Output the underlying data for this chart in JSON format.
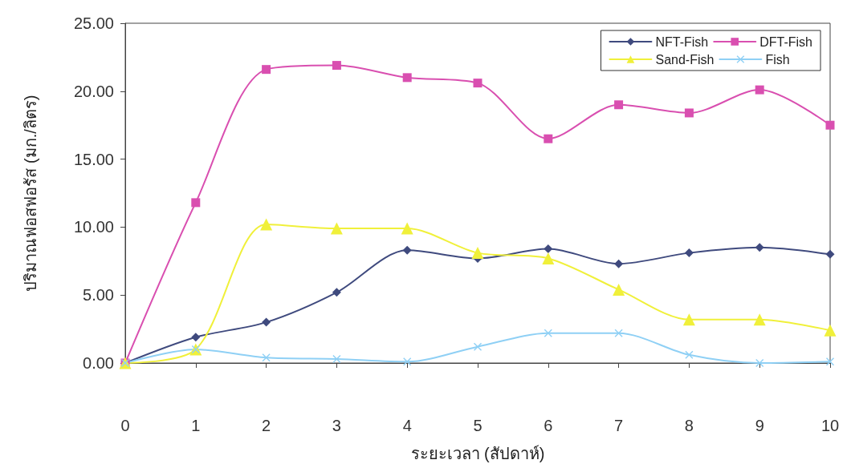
{
  "chart_data": {
    "type": "line",
    "xlabel": "ระยะเวลา (สัปดาห์)",
    "ylabel": "ปริมาณฟอสฟอรัส (มก./ลิตร)",
    "x": [
      0,
      1,
      2,
      3,
      4,
      5,
      6,
      7,
      8,
      9,
      10
    ],
    "series": [
      {
        "name": "NFT-Fish",
        "color": "#3f4a7e",
        "marker": "diamond",
        "values": [
          0,
          1.9,
          3.0,
          5.2,
          8.3,
          7.7,
          8.4,
          7.3,
          8.1,
          8.5,
          8.0
        ]
      },
      {
        "name": "DFT-Fish",
        "color": "#d94fb0",
        "marker": "square",
        "values": [
          0,
          11.8,
          21.6,
          21.9,
          21.0,
          20.6,
          16.5,
          19.0,
          18.4,
          20.1,
          17.5
        ]
      },
      {
        "name": "Sand-Fish",
        "color": "#f0f03a",
        "marker": "triangle",
        "values": [
          0,
          1.0,
          10.2,
          9.9,
          9.9,
          8.1,
          7.7,
          5.4,
          3.2,
          3.2,
          2.4
        ]
      },
      {
        "name": "Fish",
        "color": "#8fd0f5",
        "marker": "cross",
        "values": [
          0,
          1.0,
          0.4,
          0.3,
          0.1,
          1.2,
          2.2,
          2.2,
          0.6,
          0.0,
          0.1
        ]
      }
    ],
    "xlim": [
      0,
      10
    ],
    "xticks": [
      0,
      1,
      2,
      3,
      4,
      5,
      6,
      7,
      8,
      9,
      10
    ],
    "ylim": [
      0,
      25
    ],
    "yticks": [
      {
        "value": 0,
        "label": "0.00"
      },
      {
        "value": 5,
        "label": "5.00"
      },
      {
        "value": 10,
        "label": "10.00"
      },
      {
        "value": 15,
        "label": "15.00"
      },
      {
        "value": 20,
        "label": "20.00"
      },
      {
        "value": 25,
        "label": "25.00"
      }
    ],
    "grid": false,
    "legend": "top right",
    "line_style": "solid"
  }
}
